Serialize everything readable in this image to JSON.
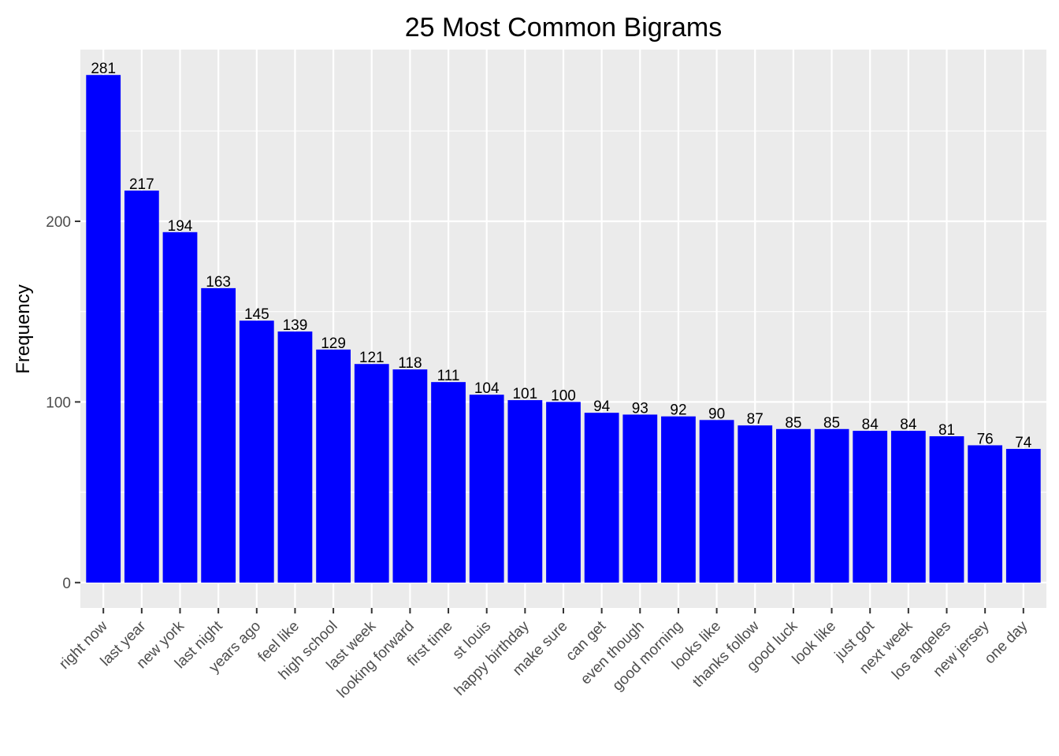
{
  "chart_data": {
    "type": "bar",
    "title": "25 Most Common Bigrams",
    "xlabel": "",
    "ylabel": "Frequency",
    "categories": [
      "right now",
      "last year",
      "new york",
      "last night",
      "years ago",
      "feel like",
      "high school",
      "last week",
      "looking forward",
      "first time",
      "st louis",
      "happy birthday",
      "make sure",
      "can get",
      "even though",
      "good morning",
      "looks like",
      "thanks follow",
      "good luck",
      "look like",
      "just got",
      "next week",
      "los angeles",
      "new jersey",
      "one day"
    ],
    "values": [
      281,
      217,
      194,
      163,
      145,
      139,
      129,
      121,
      118,
      111,
      104,
      101,
      100,
      94,
      93,
      92,
      90,
      87,
      85,
      85,
      84,
      84,
      81,
      76,
      74
    ],
    "ylim": [
      -14.05,
      295.05
    ],
    "yticks": [
      0,
      100,
      200
    ],
    "grid": true,
    "legend": "none",
    "bar_color": "#0000FF",
    "panel_color": "#EBEBEB",
    "grid_color": "#FFFFFF"
  }
}
